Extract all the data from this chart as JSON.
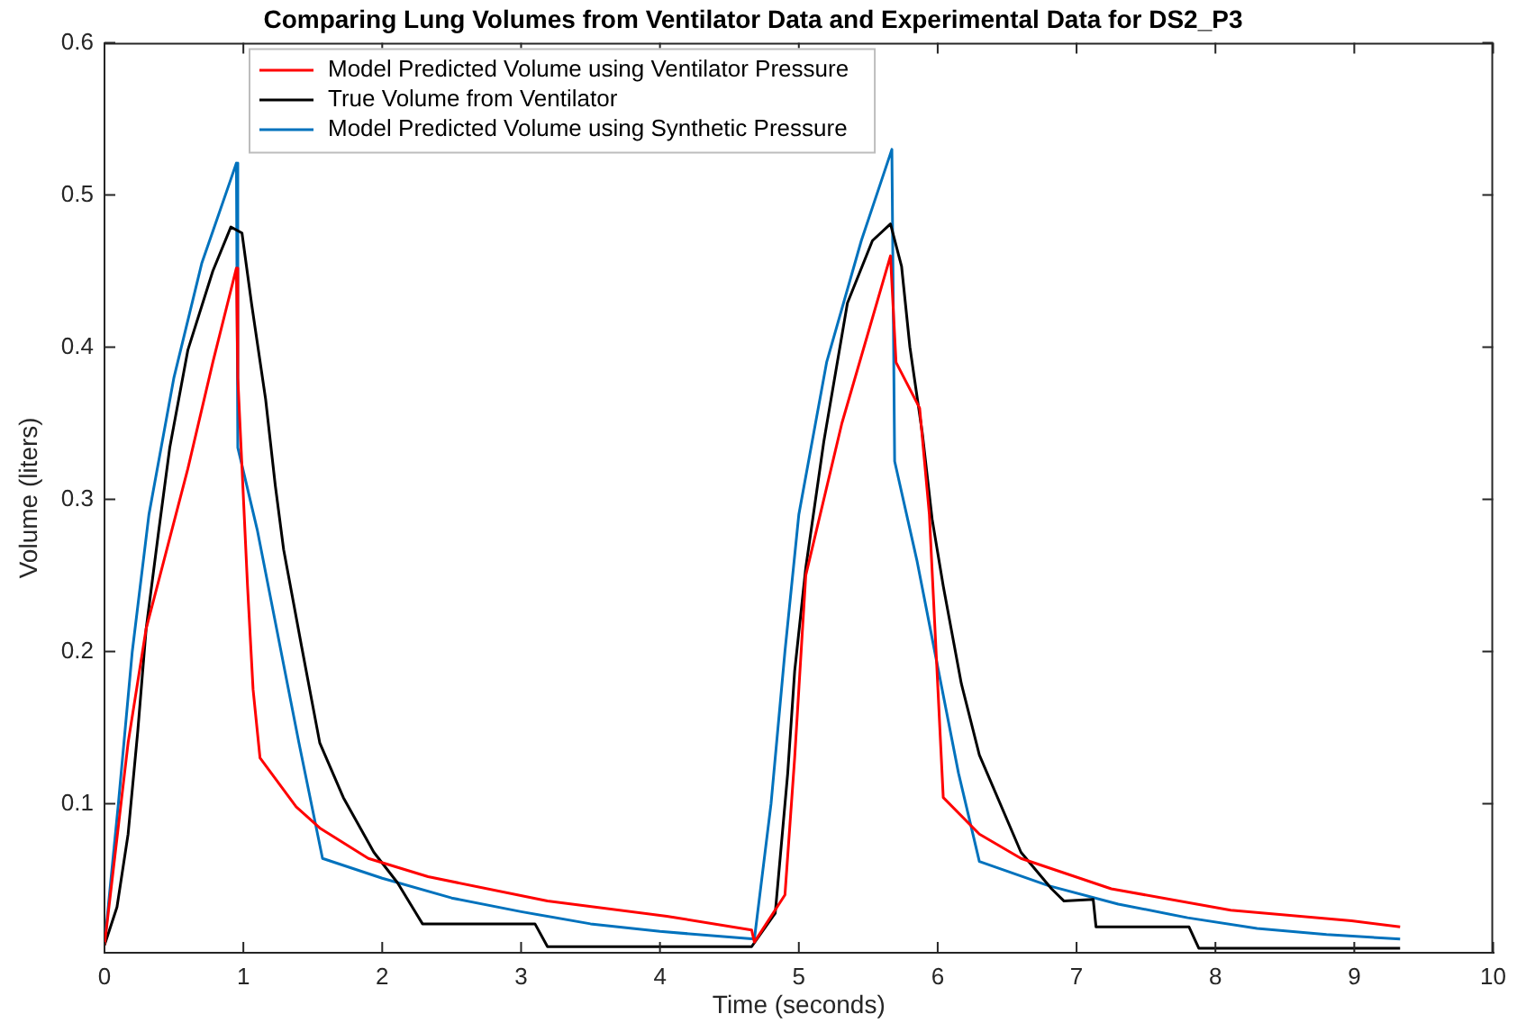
{
  "chart_data": {
    "type": "line",
    "title": "Comparing Lung Volumes from Ventilator Data and Experimental Data for DS2_P3",
    "xlabel": "Time (seconds)",
    "ylabel": "Volume (liters)",
    "xlim": [
      0,
      10
    ],
    "xticks": [
      0,
      1,
      2,
      3,
      4,
      5,
      6,
      7,
      8,
      9,
      10
    ],
    "ylim": [
      0.002,
      0.6
    ],
    "yticks": [
      0.1,
      0.2,
      0.3,
      0.4,
      0.5,
      0.6
    ],
    "grid": false,
    "legend": "top left",
    "marker": "none",
    "line_style": "solid",
    "series": [
      {
        "name": "Model Predicted Volume using Ventilator Pressure",
        "color": "#ff0000",
        "x": [
          0,
          0.17,
          0.3,
          0.6,
          0.78,
          0.95,
          0.96,
          1.03,
          1.07,
          1.12,
          1.38,
          1.55,
          1.9,
          2.33,
          3.19,
          4.05,
          4.66,
          4.68,
          4.9,
          4.97,
          5.05,
          5.31,
          5.66,
          5.7,
          5.87,
          5.94,
          6.04,
          6.3,
          6.6,
          7.25,
          8.11,
          8.98,
          9.33
        ],
        "values": [
          0.007,
          0.14,
          0.215,
          0.32,
          0.39,
          0.452,
          0.38,
          0.243,
          0.175,
          0.13,
          0.098,
          0.084,
          0.064,
          0.052,
          0.036,
          0.026,
          0.017,
          0.009,
          0.04,
          0.13,
          0.25,
          0.35,
          0.46,
          0.39,
          0.36,
          0.29,
          0.104,
          0.08,
          0.064,
          0.044,
          0.03,
          0.023,
          0.019
        ]
      },
      {
        "name": "True Volume from Ventilator",
        "color": "#000000",
        "x": [
          0,
          0.09,
          0.17,
          0.24,
          0.3,
          0.39,
          0.47,
          0.6,
          0.78,
          0.91,
          0.99,
          1.06,
          1.16,
          1.23,
          1.29,
          1.42,
          1.55,
          1.72,
          1.94,
          2.11,
          2.29,
          3.1,
          3.19,
          4.66,
          4.83,
          4.92,
          4.97,
          5.05,
          5.18,
          5.35,
          5.53,
          5.66,
          5.74,
          5.8,
          5.89,
          5.96,
          6.04,
          6.17,
          6.3,
          6.6,
          6.82,
          6.91,
          7.12,
          7.14,
          7.81,
          7.88,
          9.33
        ],
        "values": [
          0.007,
          0.032,
          0.08,
          0.148,
          0.215,
          0.279,
          0.334,
          0.398,
          0.45,
          0.479,
          0.475,
          0.428,
          0.366,
          0.309,
          0.267,
          0.203,
          0.14,
          0.104,
          0.068,
          0.048,
          0.021,
          0.021,
          0.006,
          0.006,
          0.028,
          0.12,
          0.187,
          0.255,
          0.338,
          0.429,
          0.47,
          0.481,
          0.453,
          0.4,
          0.343,
          0.287,
          0.243,
          0.179,
          0.132,
          0.068,
          0.044,
          0.036,
          0.037,
          0.019,
          0.019,
          0.005,
          0.005
        ]
      },
      {
        "name": "Model Predicted Volume using Synthetic Pressure",
        "color": "#0072bd",
        "x": [
          0,
          0.1,
          0.2,
          0.32,
          0.5,
          0.7,
          0.95,
          0.96,
          1.1,
          1.25,
          1.4,
          1.57,
          2.0,
          2.5,
          3.0,
          3.5,
          4.0,
          4.68,
          4.8,
          4.9,
          5.0,
          5.2,
          5.45,
          5.67,
          5.69,
          5.85,
          6.0,
          6.15,
          6.3,
          6.8,
          7.3,
          7.8,
          8.3,
          8.8,
          9.33
        ],
        "values": [
          0.007,
          0.1,
          0.2,
          0.29,
          0.38,
          0.455,
          0.521,
          0.334,
          0.28,
          0.21,
          0.14,
          0.064,
          0.051,
          0.038,
          0.029,
          0.021,
          0.016,
          0.011,
          0.1,
          0.2,
          0.29,
          0.39,
          0.47,
          0.53,
          0.325,
          0.26,
          0.19,
          0.12,
          0.062,
          0.046,
          0.034,
          0.025,
          0.018,
          0.014,
          0.011
        ]
      }
    ]
  }
}
